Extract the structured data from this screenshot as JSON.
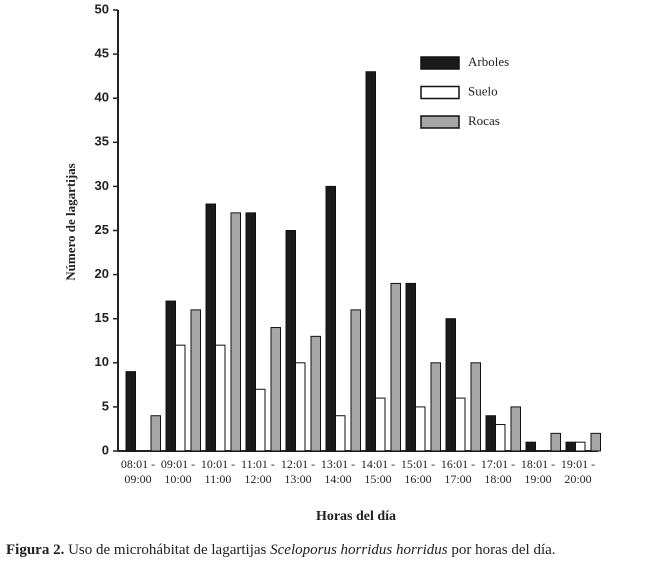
{
  "chart_data": {
    "type": "bar",
    "x_label": "Horas del día",
    "y_label": "Número de lagartijas",
    "categories": [
      "08:01 - 09:00",
      "09:01 - 10:00",
      "10:01 - 11:00",
      "11:01 - 12:00",
      "12:01 - 13:00",
      "13:01 - 14:00",
      "14:01 - 15:00",
      "15:01 - 16:00",
      "16:01 - 17:00",
      "17:01 - 18:00",
      "18:01 - 19:00",
      "19:01 - 20:00"
    ],
    "series": [
      {
        "name": "Arboles",
        "color": "#1a1a1a",
        "values": [
          9,
          17,
          28,
          27,
          25,
          30,
          43,
          19,
          15,
          4,
          1,
          1
        ]
      },
      {
        "name": "Suelo",
        "color": "#ffffff",
        "values": [
          0,
          12,
          12,
          7,
          10,
          4,
          6,
          5,
          6,
          3,
          0,
          1
        ]
      },
      {
        "name": "Rocas",
        "color": "#a6a6a6",
        "values": [
          4,
          16,
          27,
          14,
          13,
          16,
          19,
          10,
          10,
          5,
          2,
          2
        ]
      }
    ],
    "ylim": [
      0,
      50
    ],
    "yticks": [
      0,
      5,
      10,
      15,
      20,
      25,
      30,
      35,
      40,
      45,
      50
    ],
    "grid": false,
    "legend": "upper-right"
  },
  "caption": {
    "label": "Figura 2.",
    "text": "Uso de microhábitat de lagartijas",
    "species": "Sceloporus horridus horridus",
    "rest": "por horas del día."
  }
}
